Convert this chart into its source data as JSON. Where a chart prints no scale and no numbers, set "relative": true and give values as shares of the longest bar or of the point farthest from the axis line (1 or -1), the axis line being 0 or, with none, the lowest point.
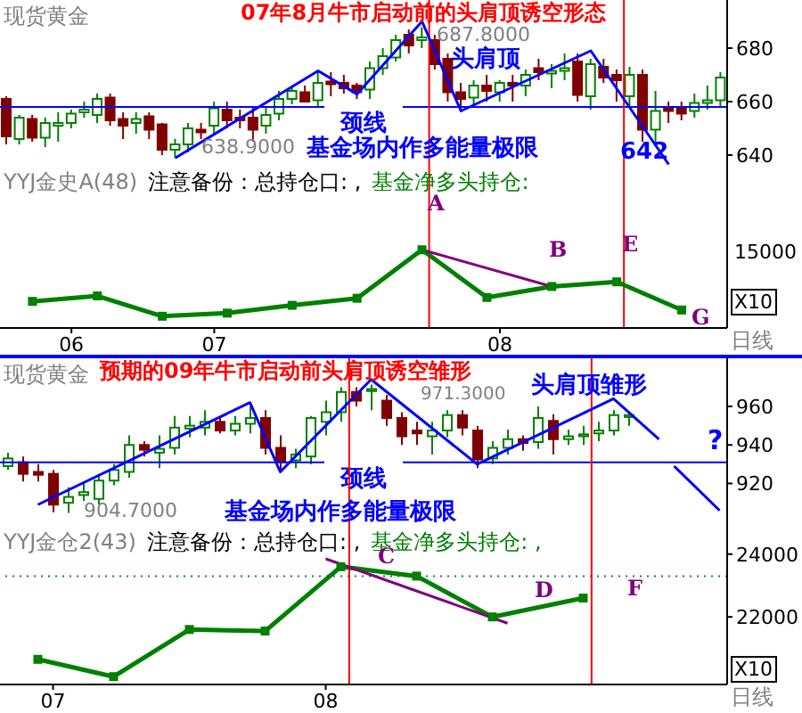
{
  "chart_data": [
    {
      "type": "candlestick",
      "title": "07年8月牛市启动前的头肩顶诱空形态",
      "subtitle": "现货黄金",
      "tick_labels": "y",
      "ylim": [
        636,
        698
      ],
      "yticks": [
        640,
        660,
        680
      ],
      "categories": [
        null,
        null,
        null,
        null,
        null,
        null,
        null,
        null,
        null,
        null,
        null,
        null,
        null,
        null,
        null,
        null,
        null,
        null,
        null,
        null,
        null,
        null,
        null,
        null,
        null,
        null,
        null,
        null,
        null,
        null,
        null,
        null,
        null,
        null,
        null,
        null,
        null,
        null,
        null,
        null,
        null,
        null,
        null,
        null,
        null,
        null,
        null,
        null,
        null,
        null,
        null,
        null,
        null,
        null,
        null,
        null
      ],
      "ohlc": [
        [
          661,
          662,
          644,
          647
        ],
        [
          646,
          655,
          644,
          654
        ],
        [
          653.5,
          655,
          645,
          646.5
        ],
        [
          646.5,
          654,
          643,
          652
        ],
        [
          651,
          656,
          645,
          652
        ],
        [
          652,
          657,
          650,
          655.5
        ],
        [
          656,
          660,
          654,
          657
        ],
        [
          655,
          663,
          652,
          661
        ],
        [
          661.5,
          663,
          651,
          653
        ],
        [
          653.5,
          656,
          646,
          651
        ],
        [
          652,
          656,
          648,
          653.5
        ],
        [
          654.5,
          656,
          646,
          649.5
        ],
        [
          651.5,
          652,
          640,
          642
        ],
        [
          642,
          646,
          638.9,
          644
        ],
        [
          644,
          652,
          641,
          650
        ],
        [
          649.5,
          652,
          646,
          648.5
        ],
        [
          651,
          660,
          648,
          657.5
        ],
        [
          657,
          660,
          650,
          653
        ],
        [
          654,
          657,
          650,
          653
        ],
        [
          654,
          658,
          645,
          649.5
        ],
        [
          651,
          658,
          648,
          655
        ],
        [
          655.5,
          664,
          653,
          661
        ],
        [
          661,
          666,
          659,
          664
        ],
        [
          663.5,
          666,
          660,
          660
        ],
        [
          660.5,
          671,
          658,
          667
        ],
        [
          667.5,
          671,
          662,
          666.5
        ],
        [
          667,
          670,
          663,
          665
        ],
        [
          666,
          667,
          661,
          663.5
        ],
        [
          664.5,
          675,
          661,
          672.5
        ],
        [
          672.5,
          680,
          670,
          677
        ],
        [
          676.5,
          685,
          675,
          683
        ],
        [
          685,
          687,
          678,
          681
        ],
        [
          683,
          687.8,
          680,
          684
        ],
        [
          683,
          685,
          672,
          674
        ],
        [
          676,
          678,
          660,
          663.5
        ],
        [
          663.5,
          667,
          657,
          661
        ],
        [
          661.5,
          668,
          658,
          666
        ],
        [
          666,
          670,
          660,
          664
        ],
        [
          663.5,
          668,
          660,
          667
        ],
        [
          667,
          670,
          660,
          666
        ],
        [
          666,
          672,
          662,
          670
        ],
        [
          672.5,
          676,
          668,
          671
        ],
        [
          670.5,
          674,
          665,
          671.5
        ],
        [
          671.5,
          678,
          668,
          672.5
        ],
        [
          675,
          678,
          660,
          662.5
        ],
        [
          662,
          676,
          657,
          674
        ],
        [
          673,
          676,
          667,
          669
        ],
        [
          670,
          672,
          660,
          668
        ],
        [
          662,
          673,
          658,
          670
        ],
        [
          670,
          672,
          645,
          649.5
        ],
        [
          649.5,
          664,
          644,
          656.5
        ],
        [
          658,
          660,
          652,
          656.5
        ],
        [
          658,
          660,
          653,
          655.5
        ],
        [
          656.5,
          663,
          654,
          659.5
        ],
        [
          659.5,
          666,
          657,
          660.5
        ],
        [
          660.5,
          671,
          658,
          669
        ]
      ],
      "colors": [
        "#800000",
        "#008000",
        "#800000",
        "#008000",
        "#008000",
        "#008000",
        "#008000",
        "#008000",
        "#800000",
        "#800000",
        "#008000",
        "#800000",
        "#800000",
        "#008000",
        "#008000",
        "#800000",
        "#008000",
        "#800000",
        "#800000",
        "#800000",
        "#008000",
        "#008000",
        "#008000",
        "#800000",
        "#008000",
        "#800000",
        "#800000",
        "#800000",
        "#008000",
        "#008000",
        "#008000",
        "#800000",
        "#008000",
        "#800000",
        "#800000",
        "#800000",
        "#008000",
        "#800000",
        "#008000",
        "#800000",
        "#008000",
        "#800000",
        "#008000",
        "#008000",
        "#800000",
        "#008000",
        "#800000",
        "#800000",
        "#008000",
        "#800000",
        "#008000",
        "#800000",
        "#800000",
        "#008000",
        "#008000",
        "#008000"
      ],
      "series": [
        {
          "type": "line",
          "color": "#0000ff",
          "values": [
            null,
            null,
            null,
            null,
            null,
            null,
            null,
            null,
            null,
            null,
            null,
            null,
            null,
            638.9,
            null,
            null,
            null,
            null,
            null,
            null,
            null,
            null,
            null,
            null,
            671.5,
            null,
            null,
            662.8,
            null,
            null,
            null,
            null,
            690,
            null,
            null,
            656.5,
            null,
            null,
            null,
            null,
            null,
            null,
            null,
            null,
            null,
            679,
            null,
            null,
            null,
            null,
            null,
            636.5,
            null,
            null,
            null,
            null
          ]
        }
      ],
      "ref_lines": [
        {
          "axis": "y",
          "value": 658,
          "label": "颈线",
          "color": "#0000ff"
        }
      ],
      "annotations": [
        "687.8000",
        "638.9000",
        "头肩顶",
        "642",
        "基金场内作多能量极限"
      ]
    },
    {
      "type": "line",
      "title": "YYJ金史A(48)",
      "relative": true,
      "marker": "square",
      "categories": [
        null,
        null,
        null,
        null,
        null,
        "06",
        null,
        null,
        null,
        null,
        null,
        null,
        null,
        null,
        null,
        null,
        "07",
        null,
        null,
        null,
        null,
        null,
        null,
        null,
        null,
        null,
        null,
        null,
        null,
        null,
        null,
        null,
        null,
        null,
        null,
        null,
        null,
        null,
        "08",
        null,
        null,
        null,
        null,
        null,
        null,
        null,
        null,
        null,
        null,
        null,
        null,
        null,
        null,
        null,
        null,
        null
      ],
      "series": [
        {
          "color": "#008000",
          "values": [
            null,
            null,
            0.34,
            null,
            null,
            null,
            null,
            0.41,
            null,
            null,
            null,
            null,
            0.15,
            null,
            null,
            null,
            null,
            0.19,
            null,
            null,
            null,
            null,
            0.29,
            null,
            null,
            null,
            null,
            0.38,
            null,
            null,
            null,
            null,
            1,
            null,
            null,
            null,
            null,
            0.39,
            null,
            null,
            null,
            null,
            0.53,
            null,
            null,
            null,
            null,
            0.59,
            null,
            null,
            null,
            null,
            0.23,
            null,
            null,
            null
          ]
        },
        {
          "color": "#800080",
          "marker": "none",
          "values": [
            null,
            null,
            null,
            null,
            null,
            null,
            null,
            null,
            null,
            null,
            null,
            null,
            null,
            null,
            null,
            null,
            null,
            null,
            null,
            null,
            null,
            null,
            null,
            null,
            null,
            null,
            null,
            null,
            null,
            null,
            null,
            null,
            1,
            null,
            null,
            null,
            null,
            null,
            null,
            null,
            null,
            null,
            0.53,
            null,
            null,
            null,
            null,
            null,
            null,
            null,
            null,
            null,
            null,
            null,
            null,
            null
          ]
        }
      ],
      "annotations": [
        "注意备份：总持仓口: ,",
        "基金净多头持仓:",
        "15000",
        "X10",
        "日线",
        "A",
        "B",
        "E",
        "G"
      ]
    },
    {
      "type": "candlestick",
      "title": "预期的09年牛市启动前头肩顶诱空雏形",
      "subtitle": "现货黄金",
      "tick_labels": "y",
      "ylim": [
        898,
        985
      ],
      "yticks": [
        920,
        940,
        960
      ],
      "categories": [
        null,
        null,
        null,
        null,
        null,
        null,
        null,
        null,
        null,
        null,
        null,
        null,
        null,
        null,
        null,
        null,
        null,
        null,
        null,
        null,
        null,
        null,
        null,
        null,
        null,
        null,
        null,
        null,
        null,
        null,
        null,
        null,
        null,
        null,
        null,
        null,
        null,
        null,
        null,
        null,
        null,
        null,
        null,
        null,
        null,
        null,
        null,
        null
      ],
      "ohlc": [
        [
          929,
          936,
          927,
          933
        ],
        [
          931,
          934,
          921,
          925
        ],
        [
          926,
          930,
          921,
          924.5
        ],
        [
          925,
          927,
          905,
          909
        ],
        [
          910,
          918,
          904.7,
          913
        ],
        [
          914,
          920,
          911,
          915.5
        ],
        [
          912,
          925,
          909,
          921.5
        ],
        [
          921.5,
          930,
          919,
          927
        ],
        [
          926,
          945,
          923,
          940
        ],
        [
          940,
          942,
          934,
          937.5
        ],
        [
          936,
          945,
          928,
          938
        ],
        [
          938.5,
          955,
          935,
          949
        ],
        [
          948.5,
          955,
          944,
          950
        ],
        [
          949,
          958,
          945,
          952
        ],
        [
          952,
          955,
          946,
          947.5
        ],
        [
          947.5,
          955,
          945,
          951
        ],
        [
          951,
          960,
          946,
          954
        ],
        [
          954,
          958,
          935,
          938.5
        ],
        [
          938.5,
          945,
          927,
          931
        ],
        [
          932,
          938,
          928,
          935
        ],
        [
          934,
          955,
          930,
          954
        ],
        [
          952,
          963,
          945,
          957
        ],
        [
          957,
          970,
          952,
          967.5
        ],
        [
          967.5,
          970,
          960,
          963
        ],
        [
          968,
          971.3,
          958,
          969
        ],
        [
          963,
          966,
          950,
          954
        ],
        [
          954,
          957,
          940,
          944.5
        ],
        [
          947.5,
          952,
          940,
          946
        ],
        [
          944.5,
          952,
          935,
          947.5
        ],
        [
          947.5,
          958,
          944,
          955.5
        ],
        [
          955.5,
          958,
          945,
          949
        ],
        [
          947.5,
          950,
          928,
          932.5
        ],
        [
          933,
          942,
          930,
          938.5
        ],
        [
          938.5,
          948,
          935,
          943
        ],
        [
          943,
          945,
          937,
          941
        ],
        [
          941.5,
          960,
          938,
          954
        ],
        [
          952.5,
          956,
          935,
          943
        ],
        [
          943,
          948,
          940,
          944.5
        ],
        [
          944.5,
          950,
          940,
          945.5
        ],
        [
          946,
          952,
          942,
          947.5
        ],
        [
          947.5,
          958,
          945,
          955.5
        ],
        [
          954.5,
          957,
          950,
          955.5
        ],
        null,
        null,
        null,
        null,
        null,
        null
      ],
      "colors": [
        "#008000",
        "#800000",
        "#800000",
        "#800000",
        "#008000",
        "#008000",
        "#008000",
        "#008000",
        "#008000",
        "#800000",
        "#008000",
        "#008000",
        "#008000",
        "#008000",
        "#800000",
        "#008000",
        "#008000",
        "#800000",
        "#800000",
        "#008000",
        "#008000",
        "#008000",
        "#008000",
        "#800000",
        "#008000",
        "#800000",
        "#800000",
        "#800000",
        "#008000",
        "#008000",
        "#800000",
        "#800000",
        "#008000",
        "#008000",
        "#800000",
        "#008000",
        "#800000",
        "#008000",
        "#008000",
        "#008000",
        "#008000",
        "#008000",
        null,
        null,
        null,
        null,
        null,
        null
      ],
      "series": [
        {
          "type": "line",
          "color": "#0000ff",
          "values": [
            null,
            null,
            909,
            null,
            null,
            null,
            null,
            null,
            null,
            null,
            null,
            null,
            null,
            null,
            null,
            null,
            962,
            null,
            926,
            null,
            null,
            null,
            null,
            null,
            974,
            null,
            null,
            null,
            null,
            null,
            null,
            930,
            null,
            null,
            null,
            null,
            null,
            null,
            null,
            null,
            964,
            null,
            null,
            943,
            null,
            null,
            null,
            null
          ]
        },
        {
          "type": "line",
          "color": "#0000ff",
          "values": [
            null,
            null,
            null,
            null,
            null,
            null,
            null,
            null,
            null,
            null,
            null,
            null,
            null,
            null,
            null,
            null,
            null,
            null,
            null,
            null,
            null,
            null,
            null,
            null,
            null,
            null,
            null,
            null,
            null,
            null,
            null,
            null,
            null,
            null,
            null,
            null,
            null,
            null,
            null,
            null,
            null,
            null,
            null,
            null,
            929,
            null,
            null,
            906
          ]
        }
      ],
      "ref_lines": [
        {
          "axis": "y",
          "value": 931,
          "label": "颈线",
          "color": "#0000ff"
        }
      ],
      "annotations": [
        "971.3000",
        "904.7000",
        "头肩顶雏形",
        "?",
        "基金场内作多能量极限"
      ]
    },
    {
      "type": "line",
      "title": "YYJ金仓2(43)",
      "marker": "square",
      "ylim": [
        19850,
        24900
      ],
      "yticks": [
        22000,
        24000
      ],
      "categories": [
        null,
        null,
        null,
        "07",
        null,
        null,
        null,
        null,
        null,
        null,
        null,
        null,
        null,
        null,
        null,
        null,
        null,
        null,
        null,
        null,
        null,
        "08",
        null,
        null,
        null,
        null,
        null,
        null,
        null,
        null,
        null,
        null,
        null,
        null,
        null,
        null,
        null,
        null,
        null,
        null,
        null,
        null,
        null,
        null,
        null,
        null,
        null,
        null
      ],
      "series": [
        {
          "color": "#008000",
          "values": [
            null,
            null,
            20650,
            null,
            null,
            null,
            null,
            20100,
            null,
            null,
            null,
            null,
            21600,
            null,
            null,
            null,
            null,
            21550,
            null,
            null,
            null,
            null,
            23600,
            null,
            null,
            null,
            null,
            23300,
            null,
            null,
            null,
            null,
            22000,
            null,
            null,
            null,
            null,
            null,
            22600,
            null,
            null,
            null,
            null,
            null,
            null,
            null,
            null,
            null
          ]
        },
        {
          "color": "#800080",
          "marker": "none",
          "values": [
            null,
            null,
            null,
            null,
            null,
            null,
            null,
            null,
            null,
            null,
            null,
            null,
            null,
            null,
            null,
            null,
            null,
            null,
            null,
            null,
            null,
            23850,
            null,
            null,
            null,
            null,
            null,
            null,
            null,
            null,
            null,
            null,
            null,
            21800,
            null,
            null,
            null,
            null,
            null,
            null,
            null,
            null,
            null,
            null,
            null,
            null,
            null,
            null
          ]
        }
      ],
      "ref_lines": [
        {
          "axis": "y",
          "value": 23300,
          "color": "#008080",
          "line_style": "dotted"
        }
      ],
      "annotations": [
        "注意备份：总持仓口: ,",
        "基金净多头持仓: ,",
        "X10",
        "日线",
        "C",
        "D",
        "F"
      ]
    }
  ]
}
